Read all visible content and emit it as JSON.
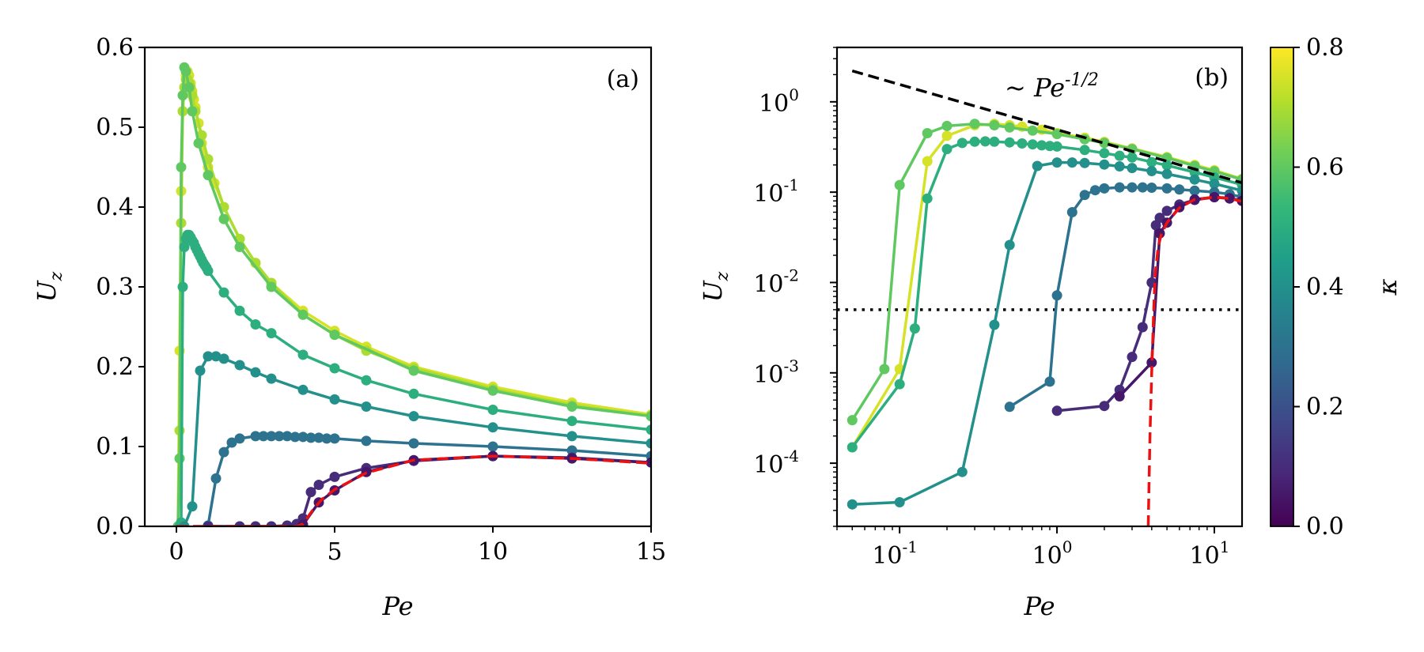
{
  "colors": {
    "red_dashed": "#ee1111",
    "black": "#000000",
    "viridis": [
      "#440154",
      "#482878",
      "#3e4989",
      "#31688e",
      "#26828e",
      "#1f9e89",
      "#35b779",
      "#6ece58",
      "#b5de2b",
      "#fde725"
    ]
  },
  "chart_data": [
    {
      "type": "line",
      "panel": "(a)",
      "xlabel": "Pe",
      "ylabel": "U_z",
      "xlim": [
        -1,
        15
      ],
      "ylim": [
        0,
        0.6
      ],
      "xticks": [
        0,
        5,
        10,
        15
      ],
      "xtick_labels": [
        "0",
        "5",
        "10",
        "15"
      ],
      "yticks": [
        0.0,
        0.1,
        0.2,
        0.3,
        0.4,
        0.5,
        0.6
      ],
      "ytick_labels": [
        "0.0",
        "0.1",
        "0.2",
        "0.3",
        "0.4",
        "0.5",
        "0.6"
      ],
      "series": [
        {
          "name": "kappa=0.75",
          "kappa": 0.75,
          "x": [
            0.05,
            0.1,
            0.15,
            0.2,
            0.25,
            0.3,
            0.35,
            0.4,
            0.45,
            0.5,
            0.55,
            0.6,
            0.7,
            0.8,
            1.0,
            1.2,
            1.5,
            2.0,
            2.5,
            3.0,
            4.0,
            5.0,
            6.0,
            7.5,
            10,
            12.5,
            15
          ],
          "y": [
            0,
            0.22,
            0.42,
            0.52,
            0.55,
            0.565,
            0.57,
            0.565,
            0.555,
            0.545,
            0.535,
            0.525,
            0.505,
            0.48,
            0.45,
            0.43,
            0.4,
            0.36,
            0.33,
            0.305,
            0.27,
            0.245,
            0.225,
            0.2,
            0.175,
            0.155,
            0.14
          ]
        },
        {
          "name": "kappa=0.7",
          "kappa": 0.7,
          "x": [
            0.05,
            0.1,
            0.15,
            0.2,
            0.25,
            0.3,
            0.35,
            0.4,
            0.45,
            0.5,
            0.6,
            0.8,
            1.0,
            1.5,
            2.0,
            2.5,
            3.0,
            4.0,
            5.0,
            6.0,
            7.5,
            10,
            12.5,
            15
          ],
          "y": [
            0,
            0.12,
            0.38,
            0.52,
            0.55,
            0.56,
            0.56,
            0.555,
            0.55,
            0.54,
            0.52,
            0.49,
            0.46,
            0.4,
            0.36,
            0.33,
            0.305,
            0.265,
            0.24,
            0.22,
            0.198,
            0.172,
            0.152,
            0.138
          ]
        },
        {
          "name": "kappa=0.6",
          "kappa": 0.6,
          "x": [
            0.05,
            0.1,
            0.15,
            0.2,
            0.25,
            0.3,
            0.4,
            0.5,
            0.7,
            1.0,
            1.5,
            2.0,
            3.0,
            4.0,
            5.0,
            7.5,
            10,
            12.5,
            15
          ],
          "y": [
            0,
            0.085,
            0.45,
            0.54,
            0.575,
            0.57,
            0.55,
            0.52,
            0.48,
            0.44,
            0.385,
            0.35,
            0.3,
            0.265,
            0.24,
            0.195,
            0.17,
            0.15,
            0.138
          ]
        },
        {
          "name": "kappa=0.5",
          "kappa": 0.5,
          "x": [
            0.1,
            0.15,
            0.2,
            0.25,
            0.3,
            0.35,
            0.4,
            0.45,
            0.5,
            0.55,
            0.6,
            0.65,
            0.7,
            0.75,
            0.8,
            0.85,
            0.9,
            0.95,
            1.0,
            1.5,
            2.0,
            2.5,
            3.0,
            4.0,
            5.0,
            6.0,
            7.5,
            10,
            12.5,
            15
          ],
          "y": [
            0,
            0.005,
            0.3,
            0.35,
            0.36,
            0.365,
            0.365,
            0.362,
            0.358,
            0.355,
            0.35,
            0.346,
            0.342,
            0.338,
            0.334,
            0.33,
            0.327,
            0.324,
            0.32,
            0.293,
            0.27,
            0.253,
            0.242,
            0.215,
            0.198,
            0.183,
            0.166,
            0.146,
            0.132,
            0.121
          ]
        },
        {
          "name": "kappa=0.4",
          "kappa": 0.4,
          "x": [
            0.25,
            0.5,
            0.75,
            1.0,
            1.25,
            1.5,
            2.0,
            2.5,
            3.0,
            4.0,
            5.0,
            6.0,
            7.5,
            10,
            12.5,
            15
          ],
          "y": [
            0,
            0.025,
            0.195,
            0.213,
            0.213,
            0.21,
            0.202,
            0.193,
            0.185,
            0.171,
            0.159,
            0.15,
            0.138,
            0.124,
            0.113,
            0.104
          ]
        },
        {
          "name": "kappa=0.3",
          "kappa": 0.3,
          "x": [
            1.0,
            1.25,
            1.5,
            1.75,
            2.0,
            2.5,
            2.75,
            3.0,
            3.25,
            3.5,
            3.75,
            4.0,
            4.25,
            4.5,
            4.75,
            5.0,
            6.0,
            7.5,
            10,
            12.5,
            15
          ],
          "y": [
            0.001,
            0.06,
            0.093,
            0.105,
            0.11,
            0.113,
            0.113,
            0.113,
            0.113,
            0.113,
            0.112,
            0.112,
            0.111,
            0.111,
            0.11,
            0.11,
            0.107,
            0.104,
            0.1,
            0.095,
            0.088
          ]
        },
        {
          "name": "kappa=0.1",
          "kappa": 0.1,
          "x": [
            1.0,
            2.0,
            2.5,
            3.0,
            3.5,
            3.8,
            4.0,
            4.25,
            4.5,
            5.0,
            6.0,
            7.5,
            10,
            12.5,
            15
          ],
          "y": [
            0,
            0,
            0,
            0,
            0.001,
            0.003,
            0.01,
            0.043,
            0.052,
            0.062,
            0.073,
            0.082,
            0.088,
            0.086,
            0.08
          ]
        },
        {
          "name": "kappa=0.05",
          "kappa": 0.05,
          "x": [
            4.0,
            4.5,
            5.0,
            6.0,
            7.5,
            10,
            12.5,
            15
          ],
          "y": [
            0.002,
            0.03,
            0.045,
            0.068,
            0.083,
            0.088,
            0.085,
            0.08
          ]
        }
      ],
      "reference_curve": {
        "name": "red dashed",
        "x": [
          0,
          1,
          2,
          3,
          3.8,
          4.0,
          4.3,
          4.6,
          5,
          6,
          7.5,
          10,
          12.5,
          15
        ],
        "y": [
          0,
          0,
          0,
          0,
          0,
          0.003,
          0.02,
          0.034,
          0.046,
          0.067,
          0.083,
          0.088,
          0.085,
          0.079
        ]
      }
    },
    {
      "type": "line",
      "panel": "(b)",
      "xlabel": "Pe",
      "ylabel": "U_z",
      "xscale": "log",
      "yscale": "log",
      "xlim": [
        0.04,
        15
      ],
      "ylim": [
        2e-05,
        4
      ],
      "xticks": [
        0.1,
        1,
        10
      ],
      "xtick_labels": [
        "10",
        "10",
        "10"
      ],
      "xtick_exponents": [
        "-1",
        "0",
        "1"
      ],
      "yticks": [
        0.0001,
        0.001,
        0.01,
        0.1,
        1
      ],
      "ytick_labels": [
        "10",
        "10",
        "10",
        "10",
        "10"
      ],
      "ytick_exponents": [
        "-4",
        "-3",
        "-2",
        "-1",
        "0"
      ],
      "series": [
        {
          "name": "kappa=0.75",
          "kappa": 0.75,
          "x": [
            0.05,
            0.1,
            0.15,
            0.2,
            0.3,
            0.4,
            0.5,
            0.6,
            0.8,
            1.0,
            1.5,
            2.0,
            3.0,
            5.0,
            7.5,
            10,
            15
          ],
          "y": [
            0.00015,
            0.0011,
            0.22,
            0.42,
            0.55,
            0.57,
            0.55,
            0.53,
            0.49,
            0.45,
            0.4,
            0.36,
            0.305,
            0.245,
            0.2,
            0.175,
            0.14
          ]
        },
        {
          "name": "kappa=0.6",
          "kappa": 0.6,
          "x": [
            0.05,
            0.08,
            0.1,
            0.15,
            0.2,
            0.3,
            0.4,
            0.5,
            0.7,
            1.0,
            1.5,
            2.0,
            3.0,
            5.0,
            7.5,
            10,
            15
          ],
          "y": [
            0.0003,
            0.0011,
            0.12,
            0.45,
            0.54,
            0.57,
            0.55,
            0.52,
            0.48,
            0.44,
            0.385,
            0.35,
            0.3,
            0.24,
            0.195,
            0.17,
            0.138
          ]
        },
        {
          "name": "kappa=0.5",
          "kappa": 0.5,
          "x": [
            0.05,
            0.1,
            0.125,
            0.15,
            0.2,
            0.25,
            0.3,
            0.35,
            0.4,
            0.5,
            0.6,
            0.7,
            0.8,
            0.9,
            1.0,
            1.5,
            2.0,
            2.5,
            3.0,
            4.0,
            5.0,
            7.5,
            10,
            15
          ],
          "y": [
            0.00015,
            0.00075,
            0.0031,
            0.085,
            0.3,
            0.35,
            0.362,
            0.365,
            0.362,
            0.355,
            0.346,
            0.338,
            0.33,
            0.324,
            0.32,
            0.293,
            0.27,
            0.253,
            0.242,
            0.215,
            0.198,
            0.166,
            0.146,
            0.121
          ]
        },
        {
          "name": "kappa=0.4",
          "kappa": 0.4,
          "x": [
            0.05,
            0.1,
            0.25,
            0.4,
            0.5,
            0.75,
            1.0,
            1.25,
            1.5,
            2.0,
            2.5,
            3.0,
            4.0,
            5.0,
            7.5,
            10,
            15
          ],
          "y": [
            3.5e-05,
            3.7e-05,
            8e-05,
            0.0034,
            0.026,
            0.195,
            0.213,
            0.213,
            0.21,
            0.202,
            0.193,
            0.185,
            0.171,
            0.159,
            0.138,
            0.124,
            0.104
          ]
        },
        {
          "name": "kappa=0.3",
          "kappa": 0.3,
          "x": [
            0.5,
            0.9,
            1.0,
            1.25,
            1.5,
            1.75,
            2.0,
            2.5,
            3.0,
            3.5,
            4.0,
            5.0,
            6.0,
            7.5,
            10,
            12.5,
            15
          ],
          "y": [
            0.00042,
            0.0008,
            0.0072,
            0.06,
            0.093,
            0.105,
            0.11,
            0.113,
            0.113,
            0.113,
            0.112,
            0.11,
            0.107,
            0.104,
            0.1,
            0.095,
            0.088
          ]
        },
        {
          "name": "kappa=0.1",
          "kappa": 0.1,
          "x": [
            1.0,
            2.0,
            2.5,
            3.0,
            3.5,
            4.0,
            4.25,
            4.5,
            5.0,
            6.0,
            7.5,
            10,
            12.5,
            15
          ],
          "y": [
            0.00038,
            0.00043,
            0.00065,
            0.0015,
            0.0032,
            0.01,
            0.043,
            0.052,
            0.062,
            0.073,
            0.082,
            0.088,
            0.086,
            0.08
          ]
        },
        {
          "name": "kappa=0.05",
          "kappa": 0.05,
          "x": [
            2.5,
            4.0,
            4.5,
            5.0,
            6.0,
            7.5,
            10,
            12.5,
            15
          ],
          "y": [
            0.00055,
            0.0013,
            0.035,
            0.046,
            0.068,
            0.083,
            0.088,
            0.085,
            0.08
          ]
        }
      ],
      "reference_curve": {
        "name": "red dashed",
        "x": [
          3.8,
          3.9,
          4.0,
          4.1,
          4.2,
          4.4,
          4.6,
          5,
          6,
          7.5,
          10,
          12.5,
          15
        ],
        "y": [
          2e-05,
          0.0002,
          0.001,
          0.004,
          0.012,
          0.025,
          0.034,
          0.046,
          0.067,
          0.083,
          0.088,
          0.085,
          0.079
        ]
      },
      "power_law_line": {
        "x": [
          0.05,
          15
        ],
        "y": [
          2.2,
          0.127
        ]
      },
      "threshold_line": {
        "y": 0.005
      },
      "annotation": {
        "prefix": "~ Pe",
        "exponent": "-1/2"
      }
    }
  ],
  "colorbar": {
    "label": "κ",
    "range": [
      0,
      0.8
    ],
    "ticks": [
      0.0,
      0.2,
      0.4,
      0.6,
      0.8
    ],
    "tick_labels": [
      "0.0",
      "0.2",
      "0.4",
      "0.6",
      "0.8"
    ]
  }
}
